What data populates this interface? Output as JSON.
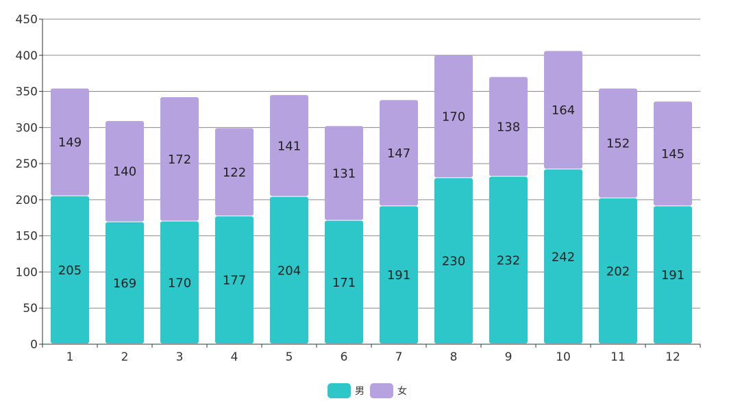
{
  "chart_data": {
    "type": "bar",
    "stacked": true,
    "categories": [
      "1",
      "2",
      "3",
      "4",
      "5",
      "6",
      "7",
      "8",
      "9",
      "10",
      "11",
      "12"
    ],
    "series": [
      {
        "name": "男",
        "color": "#2ec7c9",
        "values": [
          205,
          169,
          170,
          177,
          204,
          171,
          191,
          230,
          232,
          242,
          202,
          191
        ]
      },
      {
        "name": "女",
        "color": "#b6a2de",
        "values": [
          149,
          140,
          172,
          122,
          141,
          131,
          147,
          170,
          138,
          164,
          152,
          145
        ]
      }
    ],
    "title": "",
    "xlabel": "",
    "ylabel": "",
    "ylim": [
      0,
      450
    ],
    "yticks": [
      0,
      50,
      100,
      150,
      200,
      250,
      300,
      350,
      400,
      450
    ],
    "grid": true,
    "legend": "bottom-center"
  }
}
